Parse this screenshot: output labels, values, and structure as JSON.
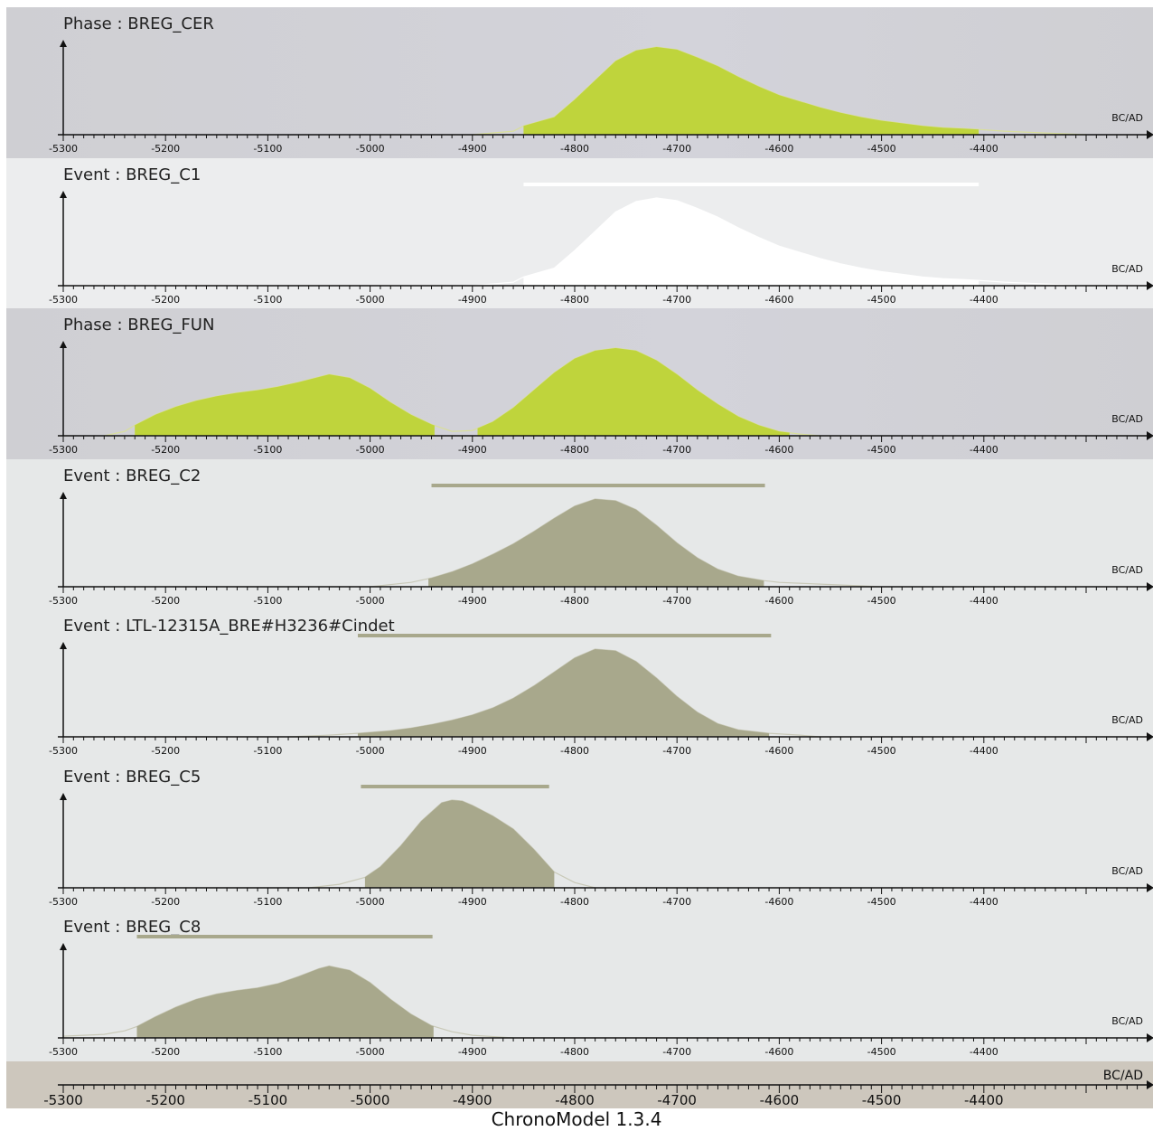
{
  "app_title": "ChronoModel 1.3.4",
  "colors": {
    "phase_fill": "#bfd43c",
    "event_fill": "#a8a88c",
    "event_highlight_fill": "#ffffff",
    "hpd_bar": "#a8a88c",
    "hpd_bar_highlight": "#ffffff",
    "phase_bg": "#cfcfd3",
    "event_bg": "#e6e8e8",
    "event_highlight_bg": "#ecedee",
    "footer_bg": "#cdc7bd"
  },
  "chart_data": {
    "type": "area",
    "x_axis": {
      "label": "BC/AD",
      "range": [
        -5300,
        -4300
      ],
      "ticks": [
        -5300,
        -5200,
        -5100,
        -5000,
        -4900,
        -4800,
        -4700,
        -4600,
        -4500,
        -4400
      ]
    },
    "panels": [
      {
        "kind": "Phase",
        "title": "Phase : BREG_CER",
        "highlighted": false,
        "hpd_intervals": [
          [
            -4850,
            -4405
          ]
        ],
        "density": [
          [
            -4900,
            0
          ],
          [
            -4860,
            0.04
          ],
          [
            -4850,
            0.1
          ],
          [
            -4820,
            0.2
          ],
          [
            -4800,
            0.4
          ],
          [
            -4780,
            0.62
          ],
          [
            -4760,
            0.84
          ],
          [
            -4740,
            0.96
          ],
          [
            -4720,
            1.0
          ],
          [
            -4700,
            0.97
          ],
          [
            -4680,
            0.88
          ],
          [
            -4660,
            0.78
          ],
          [
            -4640,
            0.66
          ],
          [
            -4620,
            0.55
          ],
          [
            -4600,
            0.45
          ],
          [
            -4580,
            0.38
          ],
          [
            -4560,
            0.31
          ],
          [
            -4540,
            0.25
          ],
          [
            -4520,
            0.2
          ],
          [
            -4500,
            0.16
          ],
          [
            -4480,
            0.13
          ],
          [
            -4460,
            0.1
          ],
          [
            -4440,
            0.08
          ],
          [
            -4420,
            0.07
          ],
          [
            -4405,
            0.06
          ],
          [
            -4380,
            0.04
          ],
          [
            -4340,
            0.02
          ],
          [
            -4300,
            0
          ]
        ]
      },
      {
        "kind": "Event",
        "title": "Event : BREG_C1",
        "highlighted": true,
        "hpd_intervals": [
          [
            -4850,
            -4405
          ]
        ],
        "hpd_bar": [
          -4850,
          -4405
        ],
        "density": [
          [
            -4900,
            0
          ],
          [
            -4860,
            0.04
          ],
          [
            -4850,
            0.1
          ],
          [
            -4820,
            0.2
          ],
          [
            -4800,
            0.4
          ],
          [
            -4780,
            0.62
          ],
          [
            -4760,
            0.84
          ],
          [
            -4740,
            0.96
          ],
          [
            -4720,
            1.0
          ],
          [
            -4700,
            0.97
          ],
          [
            -4680,
            0.88
          ],
          [
            -4660,
            0.78
          ],
          [
            -4640,
            0.66
          ],
          [
            -4620,
            0.55
          ],
          [
            -4600,
            0.45
          ],
          [
            -4580,
            0.38
          ],
          [
            -4560,
            0.31
          ],
          [
            -4540,
            0.25
          ],
          [
            -4520,
            0.2
          ],
          [
            -4500,
            0.16
          ],
          [
            -4480,
            0.13
          ],
          [
            -4460,
            0.1
          ],
          [
            -4440,
            0.08
          ],
          [
            -4420,
            0.07
          ],
          [
            -4405,
            0.06
          ],
          [
            -4380,
            0.04
          ],
          [
            -4340,
            0.02
          ],
          [
            -4300,
            0
          ]
        ]
      },
      {
        "kind": "Phase",
        "title": "Phase : BREG_FUN",
        "highlighted": false,
        "hpd_intervals": [
          [
            -5230,
            -4937
          ],
          [
            -4895,
            -4590
          ]
        ],
        "density": [
          [
            -5260,
            0
          ],
          [
            -5240,
            0.05
          ],
          [
            -5230,
            0.12
          ],
          [
            -5210,
            0.24
          ],
          [
            -5190,
            0.33
          ],
          [
            -5170,
            0.4
          ],
          [
            -5150,
            0.45
          ],
          [
            -5130,
            0.49
          ],
          [
            -5110,
            0.52
          ],
          [
            -5090,
            0.56
          ],
          [
            -5070,
            0.61
          ],
          [
            -5050,
            0.67
          ],
          [
            -5040,
            0.7
          ],
          [
            -5020,
            0.66
          ],
          [
            -5000,
            0.54
          ],
          [
            -4980,
            0.38
          ],
          [
            -4960,
            0.24
          ],
          [
            -4940,
            0.13
          ],
          [
            -4920,
            0.05
          ],
          [
            -4900,
            0.06
          ],
          [
            -4880,
            0.16
          ],
          [
            -4860,
            0.32
          ],
          [
            -4840,
            0.52
          ],
          [
            -4820,
            0.72
          ],
          [
            -4800,
            0.88
          ],
          [
            -4780,
            0.97
          ],
          [
            -4760,
            1.0
          ],
          [
            -4740,
            0.97
          ],
          [
            -4720,
            0.86
          ],
          [
            -4700,
            0.7
          ],
          [
            -4680,
            0.52
          ],
          [
            -4660,
            0.36
          ],
          [
            -4640,
            0.22
          ],
          [
            -4620,
            0.12
          ],
          [
            -4600,
            0.05
          ],
          [
            -4580,
            0.02
          ],
          [
            -4560,
            0
          ]
        ]
      },
      {
        "kind": "Event",
        "title": "Event : BREG_C2",
        "highlighted": false,
        "hpd_intervals": [
          [
            -4943,
            -4615
          ]
        ],
        "hpd_bar": [
          -4940,
          -4614
        ],
        "density": [
          [
            -5000,
            0
          ],
          [
            -4960,
            0.05
          ],
          [
            -4940,
            0.1
          ],
          [
            -4920,
            0.17
          ],
          [
            -4900,
            0.26
          ],
          [
            -4880,
            0.37
          ],
          [
            -4860,
            0.49
          ],
          [
            -4840,
            0.63
          ],
          [
            -4820,
            0.78
          ],
          [
            -4800,
            0.92
          ],
          [
            -4780,
            1.0
          ],
          [
            -4760,
            0.98
          ],
          [
            -4740,
            0.88
          ],
          [
            -4720,
            0.7
          ],
          [
            -4700,
            0.5
          ],
          [
            -4680,
            0.33
          ],
          [
            -4660,
            0.2
          ],
          [
            -4640,
            0.12
          ],
          [
            -4615,
            0.07
          ],
          [
            -4600,
            0.05
          ],
          [
            -4560,
            0.03
          ],
          [
            -4520,
            0.01
          ],
          [
            -4500,
            0
          ]
        ]
      },
      {
        "kind": "Event",
        "title": "Event : LTL-12315A_BRE#H3236#Cindet",
        "highlighted": false,
        "hpd_intervals": [
          [
            -5012,
            -4610
          ]
        ],
        "hpd_bar": [
          -5012,
          -4608
        ],
        "density": [
          [
            -5080,
            0
          ],
          [
            -5040,
            0.02
          ],
          [
            -5012,
            0.04
          ],
          [
            -4980,
            0.07
          ],
          [
            -4960,
            0.1
          ],
          [
            -4940,
            0.14
          ],
          [
            -4920,
            0.19
          ],
          [
            -4900,
            0.25
          ],
          [
            -4880,
            0.33
          ],
          [
            -4860,
            0.44
          ],
          [
            -4840,
            0.58
          ],
          [
            -4820,
            0.74
          ],
          [
            -4800,
            0.9
          ],
          [
            -4780,
            1.0
          ],
          [
            -4760,
            0.98
          ],
          [
            -4740,
            0.86
          ],
          [
            -4720,
            0.67
          ],
          [
            -4700,
            0.46
          ],
          [
            -4680,
            0.28
          ],
          [
            -4660,
            0.15
          ],
          [
            -4640,
            0.08
          ],
          [
            -4610,
            0.04
          ],
          [
            -4580,
            0.02
          ],
          [
            -4560,
            0
          ]
        ]
      },
      {
        "kind": "Event",
        "title": "Event : BREG_C5",
        "highlighted": false,
        "hpd_intervals": [
          [
            -5005,
            -4820
          ]
        ],
        "hpd_bar": [
          -5009,
          -4825
        ],
        "density": [
          [
            -5060,
            0
          ],
          [
            -5030,
            0.04
          ],
          [
            -5005,
            0.12
          ],
          [
            -4990,
            0.24
          ],
          [
            -4970,
            0.48
          ],
          [
            -4950,
            0.76
          ],
          [
            -4930,
            0.97
          ],
          [
            -4920,
            1.0
          ],
          [
            -4910,
            0.99
          ],
          [
            -4900,
            0.94
          ],
          [
            -4880,
            0.82
          ],
          [
            -4860,
            0.67
          ],
          [
            -4840,
            0.44
          ],
          [
            -4820,
            0.18
          ],
          [
            -4800,
            0.06
          ],
          [
            -4780,
            0
          ]
        ]
      },
      {
        "kind": "Event",
        "title": "Event : BREG_C8",
        "highlighted": false,
        "hpd_intervals": [
          [
            -5228,
            -4938
          ]
        ],
        "hpd_bar": [
          -5228,
          -4939
        ],
        "density": [
          [
            -5300,
            0.02
          ],
          [
            -5260,
            0.04
          ],
          [
            -5240,
            0.08
          ],
          [
            -5228,
            0.13
          ],
          [
            -5210,
            0.24
          ],
          [
            -5190,
            0.35
          ],
          [
            -5170,
            0.44
          ],
          [
            -5150,
            0.5
          ],
          [
            -5130,
            0.54
          ],
          [
            -5110,
            0.57
          ],
          [
            -5090,
            0.62
          ],
          [
            -5070,
            0.7
          ],
          [
            -5050,
            0.79
          ],
          [
            -5040,
            0.82
          ],
          [
            -5020,
            0.77
          ],
          [
            -5000,
            0.63
          ],
          [
            -4980,
            0.44
          ],
          [
            -4960,
            0.27
          ],
          [
            -4940,
            0.14
          ],
          [
            -4920,
            0.07
          ],
          [
            -4900,
            0.03
          ],
          [
            -4860,
            0
          ]
        ]
      }
    ]
  }
}
